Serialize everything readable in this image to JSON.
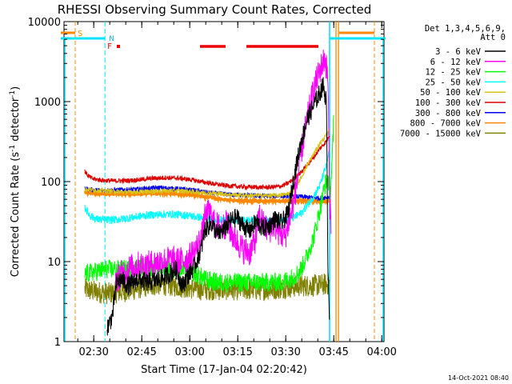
{
  "chart_data": {
    "type": "line",
    "title": "RHESSI Observing Summary Count Rates, Corrected",
    "xlabel": "Start Time (17-Jan-04 02:20:42)",
    "ylabel_main": "Corrected Count Rate (s",
    "ylabel_sup1": "-1",
    "ylabel_mid": " detector",
    "ylabel_sup2": "-1",
    "ylabel_end": ")",
    "x_unit": "minutes after 02:20:42",
    "xlim": [
      0,
      100
    ],
    "ylim": [
      1,
      10000
    ],
    "yscale": "log",
    "x_ticks": [
      {
        "label": "02:30",
        "x": 9.3
      },
      {
        "label": "02:45",
        "x": 24.3
      },
      {
        "label": "03:00",
        "x": 39.3
      },
      {
        "label": "03:15",
        "x": 54.3
      },
      {
        "label": "03:30",
        "x": 69.3
      },
      {
        "label": "03:45",
        "x": 84.3
      },
      {
        "label": "04:00",
        "x": 99.3
      }
    ],
    "y_ticks": [
      {
        "label": "1",
        "y": 1
      },
      {
        "label": "10",
        "y": 10
      },
      {
        "label": "100",
        "y": 100
      },
      {
        "label": "1000",
        "y": 1000
      },
      {
        "label": "10000",
        "y": 10000
      }
    ],
    "legend": {
      "title_lines": [
        "Det 1,3,4,5,6,9,",
        "Att 0"
      ],
      "placement": "right"
    },
    "series": [
      {
        "name": "3 - 6 keV",
        "color": "#000000",
        "points": [
          [
            13.5,
            1.5
          ],
          [
            14.5,
            1.8
          ],
          [
            15.2,
            2.2
          ],
          [
            15.8,
            3.5
          ],
          [
            16.5,
            5.5
          ],
          [
            18,
            6
          ],
          [
            20,
            5
          ],
          [
            23,
            6
          ],
          [
            26,
            5.5
          ],
          [
            30,
            6
          ],
          [
            33,
            7
          ],
          [
            35,
            8
          ],
          [
            37,
            5
          ],
          [
            39,
            7
          ],
          [
            41,
            9
          ],
          [
            43,
            15
          ],
          [
            44,
            25
          ],
          [
            46,
            30
          ],
          [
            48,
            22
          ],
          [
            50,
            25
          ],
          [
            52,
            32
          ],
          [
            54,
            36
          ],
          [
            56,
            28
          ],
          [
            58,
            24
          ],
          [
            60,
            32
          ],
          [
            62,
            26
          ],
          [
            64,
            28
          ],
          [
            66,
            34
          ],
          [
            68,
            30
          ],
          [
            70,
            40
          ],
          [
            72,
            120
          ],
          [
            74,
            300
          ],
          [
            76,
            600
          ],
          [
            78,
            900
          ],
          [
            80,
            1300
          ],
          [
            81,
            1600
          ],
          [
            82,
            1000
          ],
          [
            82.5,
            8
          ],
          [
            83,
            2
          ]
        ]
      },
      {
        "name": "6 - 12 keV",
        "color": "#ff00ff",
        "points": [
          [
            16,
            6
          ],
          [
            18,
            7
          ],
          [
            20,
            8
          ],
          [
            23,
            9
          ],
          [
            26,
            9
          ],
          [
            30,
            10
          ],
          [
            33,
            10.5
          ],
          [
            36,
            10
          ],
          [
            39,
            11
          ],
          [
            41,
            14
          ],
          [
            43,
            20
          ],
          [
            44,
            35
          ],
          [
            45.5,
            42
          ],
          [
            47,
            30
          ],
          [
            49,
            26
          ],
          [
            51,
            30
          ],
          [
            52.5,
            22
          ],
          [
            54,
            18
          ],
          [
            56,
            14
          ],
          [
            58,
            13
          ],
          [
            60,
            20
          ],
          [
            61,
            38
          ],
          [
            62.5,
            28
          ],
          [
            64,
            24
          ],
          [
            65.5,
            30
          ],
          [
            67,
            24
          ],
          [
            69,
            20
          ],
          [
            71,
            40
          ],
          [
            72.5,
            80
          ],
          [
            74,
            220
          ],
          [
            76,
            600
          ],
          [
            78,
            1400
          ],
          [
            80,
            2500
          ],
          [
            81.5,
            3500
          ],
          [
            82.5,
            2000
          ],
          [
            83,
            60
          ],
          [
            83.5,
            30
          ]
        ]
      },
      {
        "name": "12 - 25 keV",
        "color": "#00ff00",
        "points": [
          [
            6.5,
            7
          ],
          [
            10,
            7.5
          ],
          [
            13,
            8
          ],
          [
            16,
            8
          ],
          [
            20,
            8
          ],
          [
            24,
            8.5
          ],
          [
            28,
            8.5
          ],
          [
            32,
            8.5
          ],
          [
            36,
            8
          ],
          [
            40,
            7.5
          ],
          [
            44,
            6
          ],
          [
            48,
            5.5
          ],
          [
            52,
            5.5
          ],
          [
            56,
            5.5
          ],
          [
            60,
            5.5
          ],
          [
            64,
            5.5
          ],
          [
            68,
            5.5
          ],
          [
            70,
            6
          ],
          [
            72,
            6.5
          ],
          [
            74,
            8
          ],
          [
            76,
            12
          ],
          [
            78,
            20
          ],
          [
            80,
            45
          ],
          [
            81.5,
            90
          ],
          [
            82.5,
            110
          ],
          [
            83.2,
            70
          ],
          [
            83.8,
            180
          ],
          [
            84.3,
            620
          ]
        ]
      },
      {
        "name": "25 - 50 keV",
        "color": "#00ffff",
        "points": [
          [
            6.5,
            48
          ],
          [
            8,
            38
          ],
          [
            10,
            34
          ],
          [
            14,
            33
          ],
          [
            18,
            34
          ],
          [
            22,
            36
          ],
          [
            26,
            38
          ],
          [
            30,
            39
          ],
          [
            34,
            39
          ],
          [
            38,
            38
          ],
          [
            42,
            36
          ],
          [
            46,
            34
          ],
          [
            50,
            33
          ],
          [
            54,
            33
          ],
          [
            58,
            33
          ],
          [
            62,
            32
          ],
          [
            66,
            33
          ],
          [
            70,
            34
          ],
          [
            72,
            36
          ],
          [
            74,
            40
          ],
          [
            76,
            50
          ],
          [
            78,
            65
          ],
          [
            80,
            90
          ],
          [
            82,
            160
          ],
          [
            83,
            250
          ]
        ]
      },
      {
        "name": "50 - 100 keV",
        "color": "#d7c314",
        "points": [
          [
            6.5,
            80
          ],
          [
            10,
            78
          ],
          [
            14,
            76
          ],
          [
            18,
            74
          ],
          [
            22,
            74
          ],
          [
            26,
            75
          ],
          [
            30,
            76
          ],
          [
            34,
            77
          ],
          [
            38,
            76
          ],
          [
            42,
            74
          ],
          [
            46,
            72
          ],
          [
            50,
            70
          ],
          [
            54,
            68
          ],
          [
            58,
            67
          ],
          [
            62,
            67
          ],
          [
            66,
            67
          ],
          [
            68,
            68
          ],
          [
            70,
            70
          ],
          [
            72,
            80
          ],
          [
            74,
            110
          ],
          [
            76,
            160
          ],
          [
            78,
            220
          ],
          [
            80,
            300
          ],
          [
            82,
            380
          ],
          [
            83,
            440
          ]
        ]
      },
      {
        "name": "100 - 300 keV",
        "color": "#dd0000",
        "points": [
          [
            6.5,
            135
          ],
          [
            7.5,
            118
          ],
          [
            9,
            108
          ],
          [
            12,
            104
          ],
          [
            16,
            102
          ],
          [
            20,
            103
          ],
          [
            24,
            106
          ],
          [
            28,
            110
          ],
          [
            32,
            112
          ],
          [
            36,
            110
          ],
          [
            40,
            105
          ],
          [
            44,
            98
          ],
          [
            48,
            92
          ],
          [
            52,
            88
          ],
          [
            56,
            86
          ],
          [
            60,
            85
          ],
          [
            64,
            85
          ],
          [
            66,
            86
          ],
          [
            68,
            88
          ],
          [
            70,
            95
          ],
          [
            72,
            110
          ],
          [
            74,
            130
          ],
          [
            76,
            160
          ],
          [
            78,
            200
          ],
          [
            80,
            260
          ],
          [
            82,
            320
          ],
          [
            83,
            380
          ]
        ]
      },
      {
        "name": "300 - 800 keV",
        "color": "#0000ee",
        "points": [
          [
            6.5,
            82
          ],
          [
            8,
            80
          ],
          [
            10,
            78
          ],
          [
            14,
            78
          ],
          [
            18,
            79
          ],
          [
            22,
            80
          ],
          [
            26,
            82
          ],
          [
            30,
            84
          ],
          [
            34,
            82
          ],
          [
            38,
            80
          ],
          [
            42,
            76
          ],
          [
            46,
            72
          ],
          [
            50,
            70
          ],
          [
            54,
            68
          ],
          [
            58,
            67
          ],
          [
            62,
            66
          ],
          [
            66,
            66
          ],
          [
            68,
            66
          ],
          [
            70,
            66
          ],
          [
            72,
            65
          ],
          [
            74,
            65
          ],
          [
            76,
            64
          ],
          [
            78,
            63
          ],
          [
            80,
            62
          ],
          [
            82,
            64
          ],
          [
            83,
            65
          ]
        ]
      },
      {
        "name": "800 - 7000 keV",
        "color": "#ff8800",
        "points": [
          [
            6.5,
            73
          ],
          [
            8,
            72
          ],
          [
            10,
            71
          ],
          [
            14,
            70
          ],
          [
            18,
            70
          ],
          [
            22,
            70
          ],
          [
            26,
            71
          ],
          [
            30,
            72
          ],
          [
            34,
            71
          ],
          [
            38,
            69
          ],
          [
            42,
            66
          ],
          [
            46,
            63
          ],
          [
            50,
            60
          ],
          [
            54,
            58
          ],
          [
            58,
            57
          ],
          [
            62,
            57
          ],
          [
            66,
            57
          ],
          [
            70,
            57
          ],
          [
            74,
            57
          ],
          [
            78,
            57
          ],
          [
            82,
            57
          ],
          [
            83,
            57
          ]
        ]
      },
      {
        "name": "7000 - 15000 keV",
        "color": "#808000",
        "points": [
          [
            6.5,
            4.5
          ],
          [
            10,
            4.2
          ],
          [
            14,
            4
          ],
          [
            18,
            4.2
          ],
          [
            22,
            4.5
          ],
          [
            26,
            5
          ],
          [
            30,
            5.2
          ],
          [
            34,
            5
          ],
          [
            38,
            4.8
          ],
          [
            42,
            4.5
          ],
          [
            46,
            4.5
          ],
          [
            50,
            4.5
          ],
          [
            54,
            4.5
          ],
          [
            58,
            4.5
          ],
          [
            62,
            4.5
          ],
          [
            66,
            4.6
          ],
          [
            70,
            4.8
          ],
          [
            74,
            5
          ],
          [
            78,
            5
          ],
          [
            82,
            5.2
          ],
          [
            83,
            5.3
          ]
        ]
      }
    ],
    "markers": {
      "s_label": "S",
      "n_label": "N",
      "f_label": "F",
      "saa_segments": [
        [
          -1,
          3.5
        ],
        [
          86,
          97
        ]
      ],
      "night_segments": [
        [
          -1,
          12.8
        ],
        [
          83,
          100.5
        ]
      ],
      "flare_segments": [
        [
          42.5,
          50.5
        ],
        [
          57,
          79.5
        ]
      ],
      "flare_dot": 17,
      "cyan_vlines": [
        12.8,
        83.0
      ],
      "orange_vlines": [
        3.5,
        85.0,
        85.8,
        97.0
      ]
    }
  },
  "footer": {
    "timestamp": "14-Oct-2021 08:40"
  }
}
